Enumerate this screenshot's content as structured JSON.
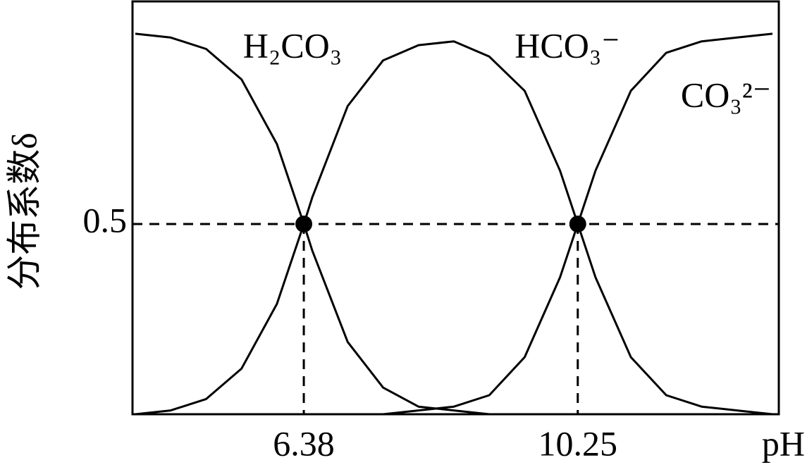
{
  "chart_data": {
    "type": "line",
    "y_label": "分布系数δ",
    "x_label": "pH",
    "x": [
      4,
      4.5,
      5,
      5.5,
      6,
      6.38,
      6.5,
      7,
      7.5,
      8,
      8.5,
      9,
      9.5,
      10,
      10.25,
      10.5,
      11,
      11.5,
      12,
      12.5,
      13
    ],
    "series": [
      {
        "name": "H₂CO₃",
        "color": "#000000",
        "values": [
          1.0,
          0.99,
          0.96,
          0.88,
          0.71,
          0.5,
          0.43,
          0.19,
          0.07,
          0.02,
          0.01,
          0.0,
          0.0,
          0.0,
          0.0,
          0.0,
          0.0,
          0.0,
          0.0,
          0.0,
          0.0
        ]
      },
      {
        "name": "HCO₃⁻",
        "color": "#000000",
        "values": [
          0.0,
          0.01,
          0.04,
          0.12,
          0.29,
          0.5,
          0.57,
          0.81,
          0.93,
          0.97,
          0.98,
          0.94,
          0.85,
          0.64,
          0.5,
          0.36,
          0.15,
          0.05,
          0.02,
          0.01,
          0.0
        ]
      },
      {
        "name": "CO₃²⁻",
        "color": "#000000",
        "values": [
          0.0,
          0.0,
          0.0,
          0.0,
          0.0,
          0.0,
          0.0,
          0.0,
          0.0,
          0.01,
          0.02,
          0.05,
          0.15,
          0.36,
          0.5,
          0.64,
          0.85,
          0.95,
          0.98,
          0.99,
          1.0
        ]
      }
    ],
    "xlim": [
      3.96,
      13.09
    ],
    "ylim": [
      0,
      1.085
    ],
    "xticks": [
      6.38,
      10.25
    ],
    "yticks": [
      0.5
    ]
  }
}
